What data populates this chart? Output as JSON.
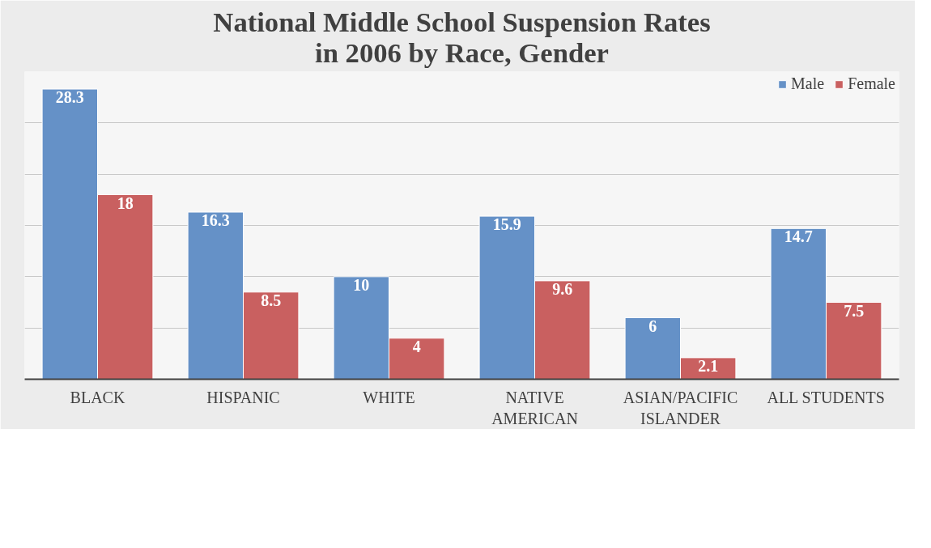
{
  "chart_data": {
    "type": "bar",
    "title": "National Middle School Suspension Rates in 2006 by Race, Gender",
    "categories": [
      "BLACK",
      "HISPANIC",
      "WHITE",
      "NATIVE AMERICAN",
      "ASIAN/PACIFIC ISLANDER",
      "ALL STUDENTS"
    ],
    "series": [
      {
        "name": "Male",
        "color": "#6591c7",
        "values": [
          28.3,
          16.3,
          10,
          15.9,
          6,
          14.7
        ]
      },
      {
        "name": "Female",
        "color": "#c96060",
        "values": [
          18,
          8.5,
          4,
          9.6,
          2.1,
          7.5
        ]
      }
    ],
    "ylim": [
      0,
      30
    ],
    "yticks": [
      {
        "value": 0,
        "label": null
      },
      {
        "value": 5,
        "label": null
      },
      {
        "value": 10,
        "label": null
      },
      {
        "value": 15,
        "label": null
      },
      {
        "value": 20,
        "label": null
      },
      {
        "value": 25,
        "label": null
      },
      {
        "value": 30,
        "label": null
      }
    ],
    "tick_labels": "x",
    "grid": "y",
    "legend": "top right",
    "data_labels": true
  }
}
